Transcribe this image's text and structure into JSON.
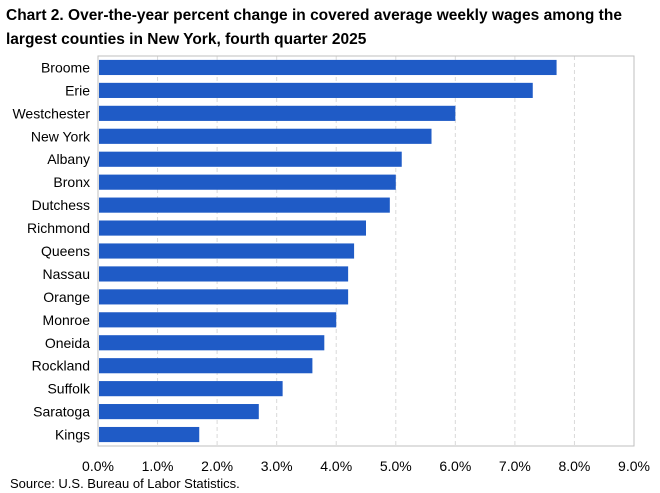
{
  "title": "Chart 2. Over-the-year percent change in covered average weekly wages among the largest counties in New York, fourth quarter 2025",
  "source": "Source: U.S. Bureau of Labor Statistics.",
  "chart_data": {
    "type": "bar",
    "orientation": "horizontal",
    "categories": [
      "Broome",
      "Erie",
      "Westchester",
      "New York",
      "Albany",
      "Bronx",
      "Dutchess",
      "Richmond",
      "Queens",
      "Nassau",
      "Orange",
      "Monroe",
      "Oneida",
      "Rockland",
      "Suffolk",
      "Saratoga",
      "Kings"
    ],
    "values": [
      7.7,
      7.3,
      6.0,
      5.6,
      5.1,
      5.0,
      4.9,
      4.5,
      4.3,
      4.2,
      4.2,
      4.0,
      3.8,
      3.6,
      3.1,
      2.7,
      1.7
    ],
    "xlim": [
      0,
      9
    ],
    "ticks": [
      "0.0%",
      "1.0%",
      "2.0%",
      "3.0%",
      "4.0%",
      "5.0%",
      "6.0%",
      "7.0%",
      "8.0%",
      "9.0%"
    ],
    "bar_color": "#1f5bc6",
    "grid": true,
    "xlabel": "",
    "ylabel": ""
  }
}
